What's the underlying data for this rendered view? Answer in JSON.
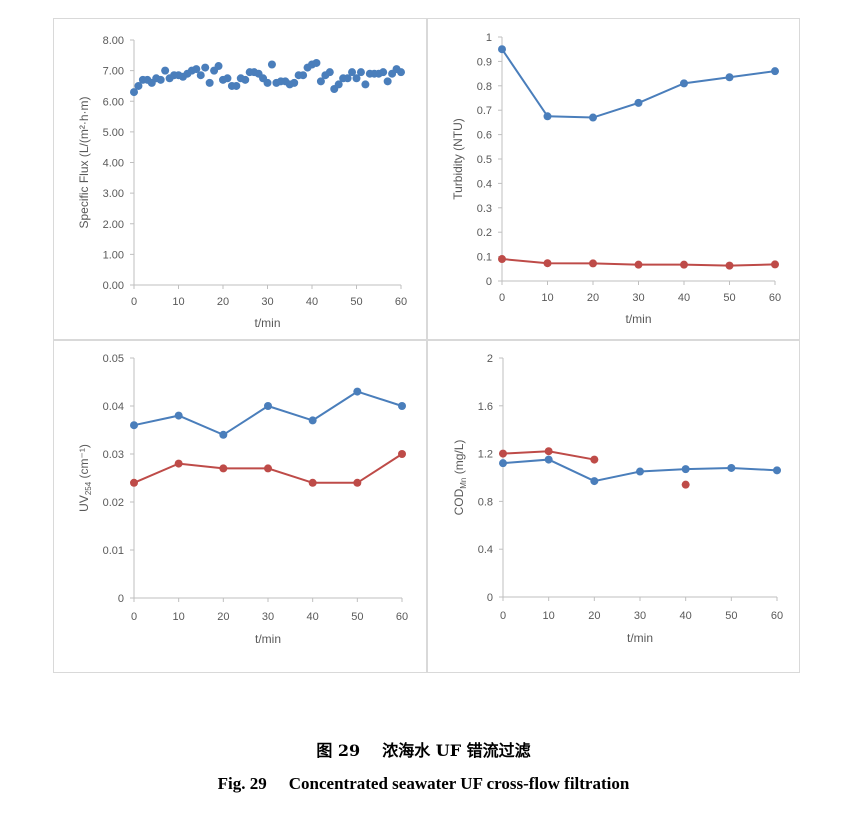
{
  "colors": {
    "blue": "#4a7ebb",
    "red": "#be4b48",
    "axis": "#bfbfbf",
    "text": "#595959"
  },
  "captions": {
    "cn_num": "图 29",
    "cn_title": "浓海水 UF 错流过滤",
    "en_num": "Fig. 29",
    "en_title": "Concentrated seawater UF cross-flow filtration"
  },
  "chart_data": [
    {
      "type": "scatter",
      "xlabel": "t/min",
      "ylabel": "Specific Flux (L/(m²·h·m)",
      "xlim": [
        0,
        60
      ],
      "ylim": [
        0,
        8
      ],
      "xticks": [
        "0",
        "10",
        "20",
        "30",
        "40",
        "50",
        "60"
      ],
      "yticks": [
        "0.00",
        "1.00",
        "2.00",
        "3.00",
        "4.00",
        "5.00",
        "6.00",
        "7.00",
        "8.00"
      ],
      "series": [
        {
          "color": "#4a7ebb",
          "x": [
            0,
            1,
            2,
            3,
            4,
            5,
            6,
            7,
            8,
            9,
            10,
            11,
            12,
            13,
            14,
            15,
            16,
            17,
            18,
            19,
            20,
            21,
            22,
            23,
            24,
            25,
            26,
            27,
            28,
            29,
            30,
            31,
            32,
            33,
            34,
            35,
            36,
            37,
            38,
            39,
            40,
            41,
            42,
            43,
            44,
            45,
            46,
            47,
            48,
            49,
            50,
            51,
            52,
            53,
            54,
            55,
            56,
            57,
            58,
            59,
            60
          ],
          "y": [
            6.3,
            6.5,
            6.7,
            6.7,
            6.6,
            6.75,
            6.7,
            7.0,
            6.75,
            6.85,
            6.85,
            6.8,
            6.9,
            7.0,
            7.05,
            6.85,
            7.1,
            6.6,
            7.0,
            7.15,
            6.7,
            6.75,
            6.5,
            6.5,
            6.75,
            6.7,
            6.95,
            6.95,
            6.9,
            6.75,
            6.6,
            7.2,
            6.6,
            6.65,
            6.65,
            6.55,
            6.6,
            6.85,
            6.85,
            7.1,
            7.2,
            7.25,
            6.65,
            6.85,
            6.95,
            6.4,
            6.55,
            6.75,
            6.75,
            6.95,
            6.75,
            6.95,
            6.55,
            6.9,
            6.9,
            6.9,
            6.95,
            6.65,
            6.9,
            7.05,
            6.95
          ]
        }
      ]
    },
    {
      "type": "line",
      "xlabel": "t/min",
      "ylabel": "Turbidity (NTU)",
      "xlim": [
        0,
        60
      ],
      "ylim": [
        0,
        1
      ],
      "xticks": [
        "0",
        "10",
        "20",
        "30",
        "40",
        "50",
        "60"
      ],
      "yticks": [
        "0",
        "0.1",
        "0.2",
        "0.3",
        "0.4",
        "0.5",
        "0.6",
        "0.7",
        "0.8",
        "0.9",
        "1"
      ],
      "series": [
        {
          "color": "#4a7ebb",
          "x": [
            0,
            10,
            20,
            30,
            40,
            50,
            60
          ],
          "y": [
            0.95,
            0.675,
            0.67,
            0.73,
            0.81,
            0.835,
            0.86
          ]
        },
        {
          "color": "#be4b48",
          "x": [
            0,
            10,
            20,
            30,
            40,
            50,
            60
          ],
          "y": [
            0.09,
            0.073,
            0.072,
            0.067,
            0.067,
            0.063,
            0.068
          ]
        }
      ]
    },
    {
      "type": "line",
      "xlabel": "t/min",
      "ylabel": "UV254 (cm⁻¹)",
      "ylabel_main": "UV",
      "ylabel_sub": "254",
      "ylabel_rest": " (cm⁻¹)",
      "xlim": [
        0,
        60
      ],
      "ylim": [
        0,
        0.05
      ],
      "xticks": [
        "0",
        "10",
        "20",
        "30",
        "40",
        "50",
        "60"
      ],
      "yticks": [
        "0",
        "0.01",
        "0.02",
        "0.03",
        "0.04",
        "0.05"
      ],
      "series": [
        {
          "color": "#4a7ebb",
          "x": [
            0,
            10,
            20,
            30,
            40,
            50,
            60
          ],
          "y": [
            0.036,
            0.038,
            0.034,
            0.04,
            0.037,
            0.043,
            0.04
          ]
        },
        {
          "color": "#be4b48",
          "x": [
            0,
            10,
            20,
            30,
            40,
            50,
            60
          ],
          "y": [
            0.024,
            0.028,
            0.027,
            0.027,
            0.024,
            0.024,
            0.03
          ]
        }
      ]
    },
    {
      "type": "line",
      "xlabel": "t/min",
      "ylabel": "CODMn (mg/L)",
      "ylabel_main": "COD",
      "ylabel_sub": "Mn",
      "ylabel_rest": " (mg/L)",
      "xlim": [
        0,
        60
      ],
      "ylim": [
        0,
        2
      ],
      "xticks": [
        "0",
        "10",
        "20",
        "30",
        "40",
        "50",
        "60"
      ],
      "yticks": [
        "0",
        "0.4",
        "0.8",
        "1.2",
        "1.6",
        "2"
      ],
      "series": [
        {
          "color": "#4a7ebb",
          "x": [
            0,
            10,
            20,
            30,
            40,
            50,
            60
          ],
          "y": [
            1.12,
            1.15,
            0.97,
            1.05,
            1.07,
            1.08,
            1.06
          ],
          "segments": [
            [
              0,
              6
            ]
          ]
        },
        {
          "color": "#be4b48",
          "x": [
            0,
            10,
            20,
            40
          ],
          "y": [
            1.2,
            1.22,
            1.15,
            0.94
          ],
          "segments": [
            [
              0,
              2
            ]
          ]
        }
      ]
    }
  ]
}
